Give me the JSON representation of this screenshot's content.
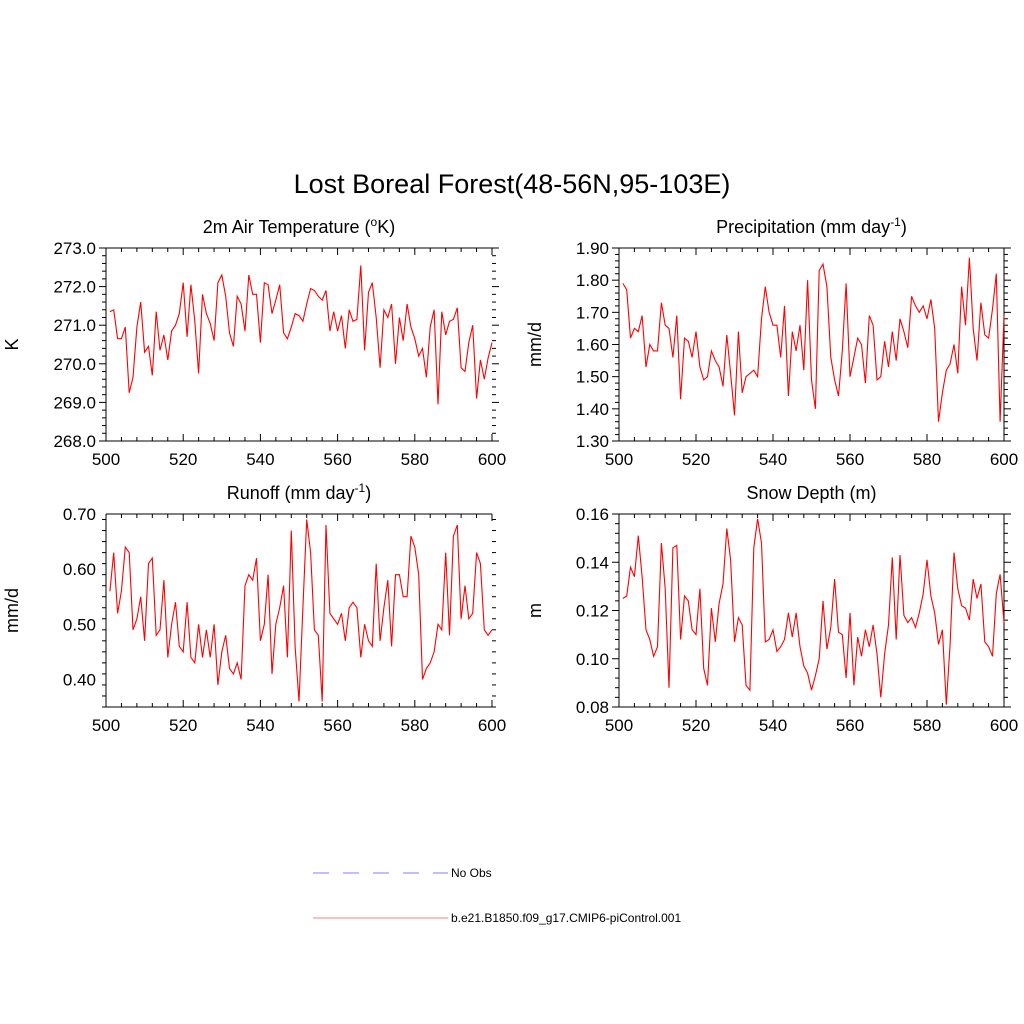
{
  "chart_data": {
    "title": "Lost Boreal Forest(48-56N,95-103E)",
    "legend": [
      {
        "label": "No Obs",
        "color": "#9999ff",
        "style": "dashed"
      },
      {
        "label": "b.e21.B1850.f09_g17.CMIP6-piControl.001",
        "color": "#ff9999",
        "style": "solid"
      }
    ],
    "panels": [
      {
        "type": "line",
        "title": "2m Air Temperature (",
        "title_sup": "o",
        "title_after": "K)",
        "ylabel": "K",
        "xlim": [
          500,
          600
        ],
        "ylim": [
          268.0,
          273.0
        ],
        "xticks": [
          500,
          520,
          540,
          560,
          580,
          600
        ],
        "xtick_labels": [
          "500",
          "520",
          "540",
          "560",
          "580",
          "600"
        ],
        "yticks": [
          268.0,
          269.0,
          270.0,
          271.0,
          272.0,
          273.0
        ],
        "ytick_labels": [
          "268.0",
          "269.0",
          "270.0",
          "271.0",
          "272.0",
          "273.0"
        ],
        "right_axis": false,
        "series": [
          {
            "name": "b.e21.B1850.f09_g17.CMIP6-piControl.001",
            "color": "#ff0000",
            "x_start": 501,
            "values": [
              271.35,
              271.4,
              270.65,
              270.65,
              270.95,
              269.25,
              269.65,
              270.95,
              271.6,
              270.3,
              270.45,
              269.7,
              271.35,
              270.35,
              270.75,
              270.1,
              270.85,
              271.0,
              271.3,
              272.1,
              270.7,
              272.05,
              271.1,
              269.75,
              271.8,
              271.3,
              271.05,
              270.6,
              272.1,
              272.3,
              271.75,
              270.8,
              270.45,
              271.75,
              271.55,
              270.85,
              272.3,
              271.8,
              271.8,
              270.55,
              272.1,
              272.05,
              271.3,
              271.65,
              272.05,
              270.8,
              270.65,
              270.95,
              271.3,
              271.25,
              271.1,
              271.55,
              271.95,
              271.9,
              271.75,
              271.65,
              271.9,
              270.85,
              271.35,
              270.85,
              271.25,
              270.4,
              271.4,
              271.1,
              271.15,
              272.55,
              270.35,
              271.85,
              272.1,
              271.2,
              269.9,
              271.4,
              271.2,
              271.55,
              270.0,
              271.2,
              270.6,
              271.55,
              270.95,
              270.65,
              270.2,
              270.4,
              269.65,
              270.95,
              271.4,
              268.95,
              271.35,
              270.75,
              271.1,
              271.15,
              271.45,
              269.9,
              269.8,
              270.55,
              271.0,
              269.1,
              270.1,
              269.6,
              270.15,
              270.55
            ]
          }
        ]
      },
      {
        "type": "line",
        "title": "Precipitation (mm day",
        "title_sup": "-1",
        "title_after": ")",
        "ylabel": "mm/d",
        "xlim": [
          500,
          600
        ],
        "ylim": [
          1.3,
          1.9
        ],
        "xticks": [
          500,
          520,
          540,
          560,
          580,
          600
        ],
        "xtick_labels": [
          "500",
          "520",
          "540",
          "560",
          "580",
          "600"
        ],
        "yticks": [
          1.3,
          1.4,
          1.5,
          1.6,
          1.7,
          1.8,
          1.9
        ],
        "ytick_labels": [
          "1.30",
          "1.40",
          "1.50",
          "1.60",
          "1.70",
          "1.80",
          "1.90"
        ],
        "right_axis": true,
        "series": [
          {
            "name": "b.e21.B1850.f09_g17.CMIP6-piControl.001",
            "color": "#ff0000",
            "x_start": 501,
            "values": [
              1.79,
              1.77,
              1.62,
              1.65,
              1.64,
              1.69,
              1.53,
              1.6,
              1.58,
              1.58,
              1.73,
              1.66,
              1.65,
              1.56,
              1.69,
              1.43,
              1.62,
              1.61,
              1.56,
              1.64,
              1.53,
              1.49,
              1.5,
              1.58,
              1.55,
              1.53,
              1.47,
              1.63,
              1.51,
              1.38,
              1.64,
              1.45,
              1.5,
              1.51,
              1.52,
              1.5,
              1.68,
              1.78,
              1.7,
              1.66,
              1.66,
              1.56,
              1.72,
              1.44,
              1.64,
              1.58,
              1.66,
              1.52,
              1.8,
              1.49,
              1.4,
              1.83,
              1.85,
              1.78,
              1.56,
              1.49,
              1.44,
              1.58,
              1.79,
              1.5,
              1.56,
              1.62,
              1.6,
              1.48,
              1.69,
              1.66,
              1.49,
              1.5,
              1.61,
              1.53,
              1.64,
              1.55,
              1.68,
              1.64,
              1.59,
              1.75,
              1.72,
              1.7,
              1.72,
              1.68,
              1.74,
              1.65,
              1.36,
              1.45,
              1.52,
              1.54,
              1.6,
              1.51,
              1.78,
              1.66,
              1.87,
              1.65,
              1.55,
              1.73,
              1.63,
              1.62,
              1.71,
              1.82,
              1.36,
              1.69
            ]
          }
        ]
      },
      {
        "type": "line",
        "title": "Runoff (mm day",
        "title_sup": "-1",
        "title_after": ")",
        "ylabel": "mm/d",
        "xlim": [
          500,
          600
        ],
        "ylim": [
          0.35,
          0.7
        ],
        "xticks": [
          500,
          520,
          540,
          560,
          580,
          600
        ],
        "xtick_labels": [
          "500",
          "520",
          "540",
          "560",
          "580",
          "600"
        ],
        "yticks": [
          0.4,
          0.5,
          0.6,
          0.7
        ],
        "ytick_labels": [
          "0.40",
          "0.50",
          "0.60",
          "0.70"
        ],
        "right_axis": false,
        "series": [
          {
            "name": "b.e21.B1850.f09_g17.CMIP6-piControl.001",
            "color": "#ff0000",
            "x_start": 501,
            "values": [
              0.56,
              0.63,
              0.52,
              0.56,
              0.64,
              0.63,
              0.49,
              0.51,
              0.55,
              0.47,
              0.61,
              0.62,
              0.48,
              0.49,
              0.58,
              0.44,
              0.5,
              0.54,
              0.46,
              0.45,
              0.54,
              0.44,
              0.43,
              0.5,
              0.44,
              0.49,
              0.44,
              0.5,
              0.39,
              0.45,
              0.48,
              0.42,
              0.41,
              0.43,
              0.4,
              0.57,
              0.59,
              0.58,
              0.62,
              0.47,
              0.5,
              0.59,
              0.41,
              0.5,
              0.53,
              0.57,
              0.44,
              0.67,
              0.46,
              0.36,
              0.53,
              0.69,
              0.63,
              0.49,
              0.48,
              0.36,
              0.68,
              0.52,
              0.51,
              0.5,
              0.52,
              0.47,
              0.53,
              0.54,
              0.53,
              0.44,
              0.5,
              0.47,
              0.46,
              0.61,
              0.47,
              0.53,
              0.58,
              0.46,
              0.59,
              0.59,
              0.55,
              0.55,
              0.66,
              0.64,
              0.59,
              0.4,
              0.42,
              0.43,
              0.45,
              0.5,
              0.49,
              0.63,
              0.48,
              0.66,
              0.68,
              0.51,
              0.57,
              0.51,
              0.52,
              0.63,
              0.61,
              0.49,
              0.48,
              0.49
            ]
          }
        ]
      },
      {
        "type": "line",
        "title": "Snow Depth (m)",
        "title_sup": "",
        "title_after": "",
        "ylabel": "m",
        "xlim": [
          500,
          600
        ],
        "ylim": [
          0.08,
          0.16
        ],
        "xticks": [
          500,
          520,
          540,
          560,
          580,
          600
        ],
        "xtick_labels": [
          "500",
          "520",
          "540",
          "560",
          "580",
          "600"
        ],
        "yticks": [
          0.08,
          0.1,
          0.12,
          0.14,
          0.16
        ],
        "ytick_labels": [
          "0.08",
          "0.10",
          "0.12",
          "0.14",
          "0.16"
        ],
        "right_axis": true,
        "series": [
          {
            "name": "b.e21.B1850.f09_g17.CMIP6-piControl.001",
            "color": "#ff0000",
            "x_start": 501,
            "values": [
              0.125,
              0.126,
              0.138,
              0.134,
              0.151,
              0.134,
              0.112,
              0.108,
              0.101,
              0.105,
              0.148,
              0.129,
              0.088,
              0.146,
              0.147,
              0.108,
              0.126,
              0.124,
              0.112,
              0.11,
              0.129,
              0.096,
              0.089,
              0.121,
              0.107,
              0.123,
              0.131,
              0.154,
              0.141,
              0.107,
              0.117,
              0.114,
              0.089,
              0.087,
              0.146,
              0.158,
              0.148,
              0.107,
              0.108,
              0.112,
              0.103,
              0.105,
              0.108,
              0.119,
              0.109,
              0.119,
              0.105,
              0.097,
              0.094,
              0.087,
              0.093,
              0.1,
              0.124,
              0.104,
              0.113,
              0.133,
              0.111,
              0.11,
              0.092,
              0.119,
              0.089,
              0.109,
              0.101,
              0.112,
              0.105,
              0.114,
              0.102,
              0.084,
              0.102,
              0.114,
              0.142,
              0.108,
              0.143,
              0.118,
              0.115,
              0.117,
              0.113,
              0.119,
              0.127,
              0.141,
              0.126,
              0.119,
              0.106,
              0.112,
              0.081,
              0.106,
              0.144,
              0.129,
              0.122,
              0.121,
              0.116,
              0.133,
              0.125,
              0.131,
              0.107,
              0.105,
              0.101,
              0.127,
              0.135,
              0.115
            ]
          }
        ]
      }
    ]
  }
}
